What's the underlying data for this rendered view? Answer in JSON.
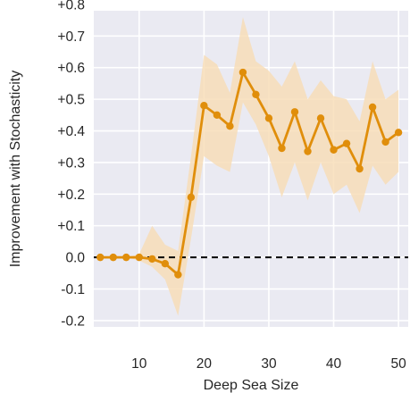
{
  "chart_data": {
    "type": "line",
    "xlabel": "Deep Sea Size",
    "ylabel": "Improvement with Stochasticity",
    "xlim": [
      3,
      51.5
    ],
    "ylim": [
      -0.22,
      0.78
    ],
    "x_ticks": [
      10,
      20,
      30,
      40,
      50
    ],
    "x_tick_labels": [
      "10",
      "20",
      "30",
      "40",
      "50"
    ],
    "y_ticks": [
      -0.2,
      -0.1,
      0.0,
      0.1,
      0.2,
      0.3,
      0.4,
      0.5,
      0.6,
      0.7,
      0.8
    ],
    "y_tick_labels": [
      "-0.2",
      "-0.1",
      "0.0",
      "+0.1",
      "+0.2",
      "+0.3",
      "+0.4",
      "+0.5",
      "+0.6",
      "+0.7",
      "+0.8"
    ],
    "grid": true,
    "reference_line": {
      "y": 0.0,
      "style": "dashed",
      "color": "#000000"
    },
    "colors": {
      "series": "#e08e0b",
      "band": "#f7dcb4",
      "plot_background": "#eaeaf2",
      "grid": "#ffffff"
    },
    "series": [
      {
        "x": [
          4,
          6,
          8,
          10,
          12,
          14,
          16,
          18,
          20,
          22,
          24,
          26,
          28,
          30,
          32,
          34,
          36,
          38,
          40,
          42,
          44,
          46,
          48,
          50
        ],
        "y": [
          0.0,
          0.0,
          0.0,
          0.0,
          -0.005,
          -0.02,
          -0.055,
          0.19,
          0.48,
          0.45,
          0.415,
          0.585,
          0.515,
          0.44,
          0.345,
          0.46,
          0.335,
          0.44,
          0.34,
          0.36,
          0.28,
          0.475,
          0.365,
          0.395
        ],
        "lower": [
          0.0,
          0.0,
          0.0,
          -0.01,
          -0.03,
          -0.07,
          -0.185,
          0.06,
          0.32,
          0.29,
          0.27,
          0.49,
          0.42,
          0.32,
          0.19,
          0.3,
          0.18,
          0.3,
          0.2,
          0.23,
          0.14,
          0.29,
          0.23,
          0.27
        ],
        "upper": [
          0.0,
          0.0,
          0.0,
          0.01,
          0.1,
          0.04,
          0.02,
          0.32,
          0.64,
          0.61,
          0.52,
          0.76,
          0.62,
          0.59,
          0.54,
          0.62,
          0.5,
          0.56,
          0.51,
          0.5,
          0.43,
          0.62,
          0.5,
          0.53
        ]
      }
    ]
  }
}
